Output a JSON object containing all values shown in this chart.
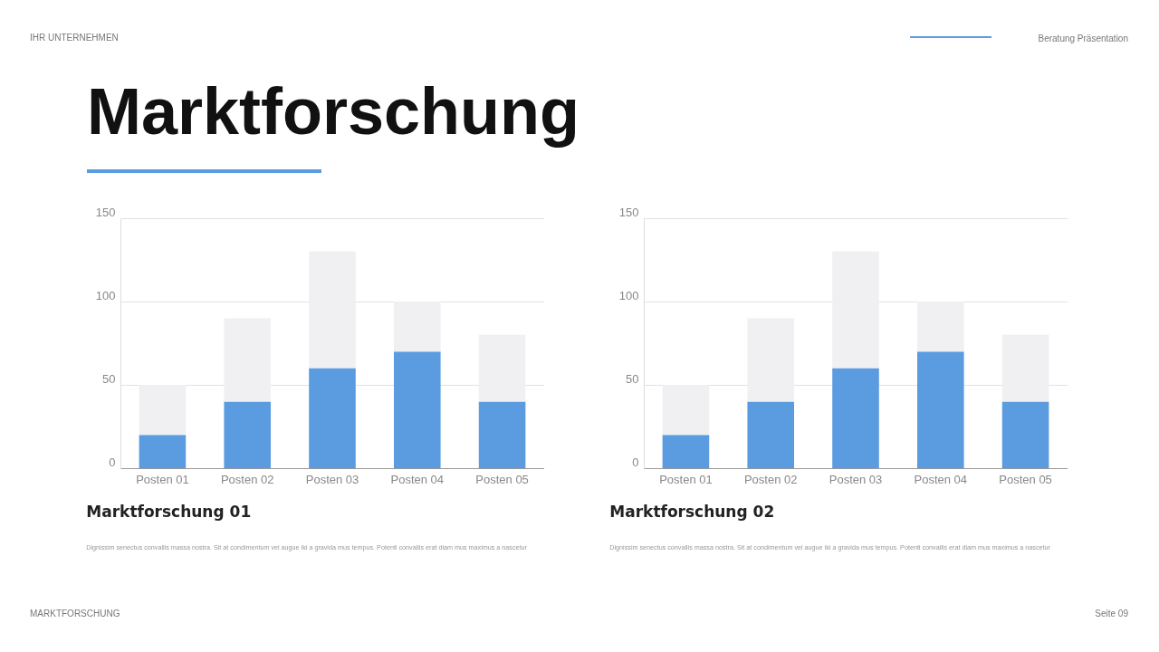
{
  "chart_data": [
    {
      "type": "bar",
      "stacked": true,
      "title": "Marktforschung 01",
      "subtitle": "Dignissim senectus convallis massa nostra. Sit at condimentum vel augue iki a gravida mus tempus. Potenti convallis erat diam mus maximus a nascetur",
      "annotations": [
        "IHR UNTERNEHMEN",
        "Beratung Präsentation",
        "Marktforschung",
        "MARKTFORSCHUNG",
        "Seite 09"
      ],
      "categories": [
        "Posten 01",
        "Posten 02",
        "Posten 03",
        "Posten 04",
        "Posten 05"
      ],
      "series": [
        {
          "color": "#5b9bdf",
          "values": [
            20,
            40,
            60,
            70,
            40
          ]
        },
        {
          "color": "#f0f0f2",
          "values": [
            30,
            50,
            70,
            30,
            40
          ]
        }
      ],
      "ylim": [
        0,
        150
      ],
      "yticks": [
        0,
        50,
        100,
        150
      ],
      "grid": "y",
      "legend": false
    },
    {
      "type": "bar",
      "stacked": true,
      "title": "Marktforschung 02",
      "subtitle": "Dignissim senectus convallis massa nostra. Sit at condimentum vel augue iki a gravida mus tempus. Potenti convallis erat diam mus maximus a nascetur",
      "categories": [
        "Posten 01",
        "Posten 02",
        "Posten 03",
        "Posten 04",
        "Posten 05"
      ],
      "series": [
        {
          "color": "#5b9bdf",
          "values": [
            20,
            40,
            60,
            70,
            40
          ]
        },
        {
          "color": "#f0f0f2",
          "values": [
            30,
            50,
            70,
            30,
            40
          ]
        }
      ],
      "ylim": [
        0,
        150
      ],
      "yticks": [
        0,
        50,
        100,
        150
      ],
      "grid": "y",
      "legend": false
    }
  ]
}
